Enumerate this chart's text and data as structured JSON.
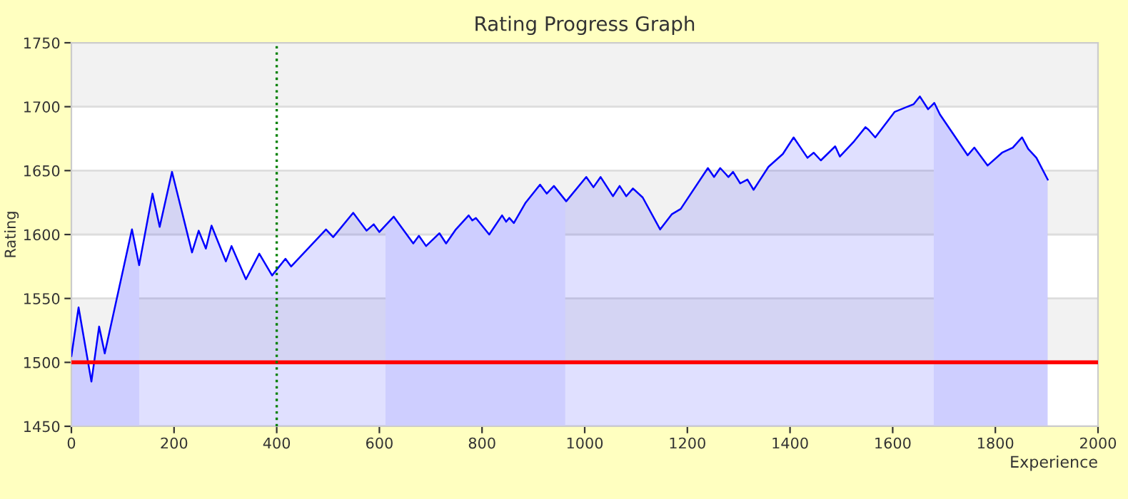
{
  "chart_data": {
    "type": "area",
    "title": "Rating Progress Graph",
    "xlabel": "Experience",
    "ylabel": "Rating",
    "xlim": [
      0,
      2000
    ],
    "xticks": [
      0,
      200,
      400,
      600,
      800,
      1000,
      1200,
      1400,
      1600,
      1800,
      2000
    ],
    "ylim": [
      1450,
      1750
    ],
    "yticks": [
      1450,
      1500,
      1550,
      1600,
      1650,
      1700,
      1750
    ],
    "grid": "y",
    "legend": false,
    "marker": "none",
    "line_style": "solid",
    "series": [
      {
        "color": "#0000ff",
        "x": [
          0,
          14,
          39,
          54,
          65,
          118,
          132,
          158,
          172,
          196,
          235,
          248,
          262,
          273,
          301,
          312,
          340,
          366,
          391,
          417,
          428,
          496,
          510,
          549,
          575,
          589,
          600,
          628,
          666,
          677,
          691,
          717,
          730,
          749,
          774,
          781,
          788,
          814,
          839,
          847,
          853,
          862,
          885,
          913,
          926,
          940,
          964,
          1003,
          1017,
          1031,
          1055,
          1068,
          1081,
          1094,
          1113,
          1147,
          1170,
          1187,
          1240,
          1252,
          1264,
          1280,
          1289,
          1303,
          1317,
          1329,
          1358,
          1386,
          1407,
          1434,
          1446,
          1460,
          1488,
          1497,
          1525,
          1547,
          1553,
          1566,
          1604,
          1641,
          1653,
          1669,
          1681,
          1692,
          1746,
          1759,
          1785,
          1813,
          1834,
          1852,
          1864,
          1880,
          1902
        ],
        "values": [
          1505,
          1543,
          1485,
          1528,
          1507,
          1604,
          1576,
          1632,
          1606,
          1649,
          1586,
          1603,
          1589,
          1607,
          1579,
          1591,
          1565,
          1585,
          1568,
          1581,
          1575,
          1604,
          1598,
          1617,
          1603,
          1608,
          1602,
          1614,
          1593,
          1599,
          1591,
          1601,
          1593,
          1604,
          1615,
          1611,
          1613,
          1600,
          1615,
          1610,
          1613,
          1609,
          1625,
          1639,
          1632,
          1638,
          1626,
          1645,
          1637,
          1645,
          1630,
          1638,
          1630,
          1636,
          1629,
          1604,
          1616,
          1620,
          1652,
          1645,
          1652,
          1645,
          1649,
          1640,
          1643,
          1635,
          1653,
          1663,
          1676,
          1660,
          1664,
          1658,
          1669,
          1661,
          1673,
          1684,
          1682,
          1676,
          1696,
          1702,
          1708,
          1698,
          1703,
          1694,
          1662,
          1668,
          1654,
          1664,
          1668,
          1676,
          1667,
          1660,
          1643
        ]
      }
    ],
    "bands": [
      {
        "axis": "x",
        "from": 0,
        "to": 132,
        "color": "#ebebff"
      },
      {
        "axis": "x",
        "from": 612,
        "to": 962,
        "color": "#ebebff"
      },
      {
        "axis": "x",
        "from": 1680,
        "to": 1902,
        "color": "#ebebff"
      }
    ],
    "ref_lines": [
      {
        "axis": "y",
        "value": 1500,
        "color": "#ff0000",
        "line_style": "solid"
      },
      {
        "axis": "x",
        "value": 400,
        "color": "#008000",
        "line_style": "dotted"
      }
    ]
  }
}
